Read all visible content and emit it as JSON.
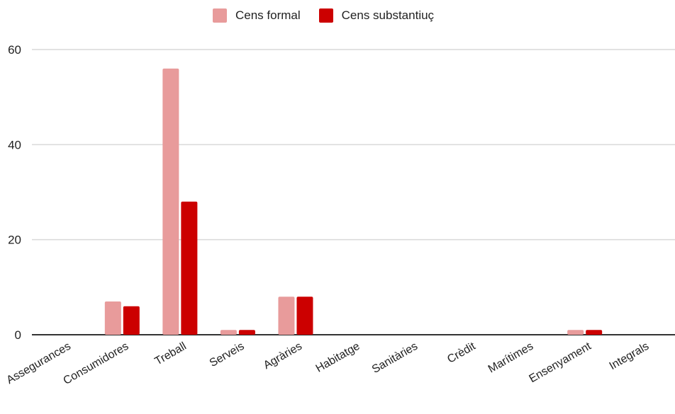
{
  "chart_data": {
    "type": "bar",
    "categories": [
      "Assegurances",
      "Consumidores",
      "Treball",
      "Serveis",
      "Agràries",
      "Habitatge",
      "Sanitàries",
      "Crèdit",
      "Marítimes",
      "Ensenyament",
      "Integrals"
    ],
    "series": [
      {
        "name": "Cens formal",
        "color": "#e89b9b",
        "values": [
          0,
          7,
          56,
          1,
          8,
          0,
          0,
          0,
          0,
          1,
          0
        ]
      },
      {
        "name": "Cens substantiuç",
        "color": "#cc0000",
        "values": [
          0,
          6,
          28,
          1,
          8,
          0,
          0,
          0,
          0,
          1,
          0
        ]
      }
    ],
    "ylim": [
      0,
      60
    ],
    "yticks": [
      0,
      20,
      40,
      60
    ],
    "grid": true,
    "legend_position": "top"
  }
}
